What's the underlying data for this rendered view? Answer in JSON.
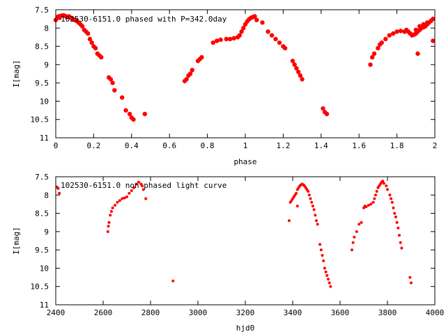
{
  "colors": {
    "points": "#ff0000",
    "frame": "#000000",
    "background": "#ffffff"
  },
  "chart_data": [
    {
      "type": "scatter",
      "title": "102530-6151.0 phased with P=342.0day",
      "xlabel": "phase",
      "ylabel": "I[mag]",
      "xlim": [
        0,
        2
      ],
      "ylim": [
        11,
        7.5
      ],
      "y_inverted": true,
      "grid": false,
      "xticks": [
        "0",
        "0.2",
        "0.4",
        "0.6",
        "0.8",
        "1",
        "1.2",
        "1.4",
        "1.6",
        "1.8",
        "2"
      ],
      "yticks": [
        "7.5",
        "8",
        "8.5",
        "9",
        "9.5",
        "10",
        "10.5",
        "11"
      ],
      "marker": "large-dot",
      "series": [
        {
          "values": [
            [
              0.0,
              7.78
            ],
            [
              0.01,
              7.7
            ],
            [
              0.015,
              7.68
            ],
            [
              0.02,
              7.72
            ],
            [
              0.03,
              7.66
            ],
            [
              0.04,
              7.65
            ],
            [
              0.05,
              7.67
            ],
            [
              0.06,
              7.7
            ],
            [
              0.07,
              7.68
            ],
            [
              0.08,
              7.72
            ],
            [
              0.09,
              7.75
            ],
            [
              0.1,
              7.78
            ],
            [
              0.11,
              7.8
            ],
            [
              0.12,
              7.85
            ],
            [
              0.13,
              7.9
            ],
            [
              0.14,
              7.95
            ],
            [
              0.15,
              8.05
            ],
            [
              0.16,
              8.1
            ],
            [
              0.17,
              8.15
            ],
            [
              0.18,
              8.3
            ],
            [
              0.19,
              8.4
            ],
            [
              0.2,
              8.5
            ],
            [
              0.21,
              8.55
            ],
            [
              0.22,
              8.7
            ],
            [
              0.23,
              8.75
            ],
            [
              0.24,
              8.8
            ],
            [
              0.28,
              9.35
            ],
            [
              0.29,
              9.4
            ],
            [
              0.3,
              9.5
            ],
            [
              0.31,
              9.7
            ],
            [
              0.35,
              9.9
            ],
            [
              0.37,
              10.25
            ],
            [
              0.39,
              10.35
            ],
            [
              0.4,
              10.45
            ],
            [
              0.41,
              10.5
            ],
            [
              0.47,
              10.35
            ],
            [
              0.68,
              9.45
            ],
            [
              0.69,
              9.4
            ],
            [
              0.7,
              9.3
            ],
            [
              0.71,
              9.25
            ],
            [
              0.72,
              9.15
            ],
            [
              0.75,
              8.9
            ],
            [
              0.76,
              8.85
            ],
            [
              0.77,
              8.8
            ],
            [
              0.83,
              8.4
            ],
            [
              0.85,
              8.35
            ],
            [
              0.87,
              8.32
            ],
            [
              0.9,
              8.3
            ],
            [
              0.92,
              8.3
            ],
            [
              0.94,
              8.28
            ],
            [
              0.96,
              8.25
            ],
            [
              0.97,
              8.2
            ],
            [
              0.98,
              8.1
            ],
            [
              0.99,
              8.0
            ],
            [
              1.0,
              7.9
            ],
            [
              1.01,
              7.82
            ],
            [
              1.02,
              7.76
            ],
            [
              1.03,
              7.72
            ],
            [
              1.04,
              7.7
            ],
            [
              1.05,
              7.68
            ],
            [
              1.06,
              7.78
            ],
            [
              1.09,
              7.85
            ],
            [
              1.12,
              8.1
            ],
            [
              1.14,
              8.2
            ],
            [
              1.16,
              8.3
            ],
            [
              1.18,
              8.4
            ],
            [
              1.2,
              8.5
            ],
            [
              1.21,
              8.55
            ],
            [
              1.25,
              8.9
            ],
            [
              1.26,
              9.0
            ],
            [
              1.27,
              9.1
            ],
            [
              1.28,
              9.2
            ],
            [
              1.29,
              9.3
            ],
            [
              1.3,
              9.4
            ],
            [
              1.41,
              10.2
            ],
            [
              1.42,
              10.3
            ],
            [
              1.43,
              10.35
            ],
            [
              1.66,
              9.0
            ],
            [
              1.67,
              8.8
            ],
            [
              1.68,
              8.7
            ],
            [
              1.7,
              8.55
            ],
            [
              1.71,
              8.45
            ],
            [
              1.72,
              8.4
            ],
            [
              1.74,
              8.3
            ],
            [
              1.76,
              8.2
            ],
            [
              1.78,
              8.15
            ],
            [
              1.8,
              8.1
            ],
            [
              1.82,
              8.08
            ],
            [
              1.84,
              8.1
            ],
            [
              1.85,
              8.05
            ],
            [
              1.86,
              8.1
            ],
            [
              1.87,
              8.15
            ],
            [
              1.88,
              8.2
            ],
            [
              1.89,
              8.18
            ],
            [
              1.9,
              8.15
            ],
            [
              1.91,
              8.1
            ],
            [
              1.92,
              8.05
            ],
            [
              1.93,
              8.0
            ],
            [
              1.94,
              7.98
            ],
            [
              1.95,
              7.95
            ],
            [
              1.96,
              7.9
            ],
            [
              1.97,
              7.85
            ],
            [
              1.98,
              7.8
            ],
            [
              1.99,
              7.75
            ],
            [
              1.9,
              8.05
            ],
            [
              1.92,
              7.95
            ],
            [
              1.94,
              7.9
            ],
            [
              1.96,
              7.85
            ],
            [
              1.98,
              7.8
            ],
            [
              1.91,
              8.7
            ],
            [
              1.99,
              8.35
            ]
          ]
        }
      ]
    },
    {
      "type": "scatter",
      "title": "102530-6151.0 non phased light curve",
      "xlabel": "hjd0",
      "ylabel": "I[mag]",
      "xlim": [
        2400,
        4000
      ],
      "ylim": [
        11,
        7.5
      ],
      "y_inverted": true,
      "grid": false,
      "xticks": [
        "2400",
        "2600",
        "2800",
        "3000",
        "3200",
        "3400",
        "3600",
        "3800",
        "4000"
      ],
      "yticks": [
        "7.5",
        "8",
        "8.5",
        "9",
        "9.5",
        "10",
        "10.5",
        "11"
      ],
      "marker": "small-dot",
      "series": [
        {
          "values": [
            [
              2405,
              7.78
            ],
            [
              2410,
              7.82
            ],
            [
              2415,
              7.95
            ],
            [
              2620,
              9.0
            ],
            [
              2622,
              8.85
            ],
            [
              2625,
              8.75
            ],
            [
              2630,
              8.55
            ],
            [
              2635,
              8.45
            ],
            [
              2640,
              8.35
            ],
            [
              2650,
              8.28
            ],
            [
              2660,
              8.2
            ],
            [
              2670,
              8.15
            ],
            [
              2680,
              8.1
            ],
            [
              2690,
              8.08
            ],
            [
              2700,
              8.05
            ],
            [
              2710,
              7.95
            ],
            [
              2720,
              7.88
            ],
            [
              2730,
              7.8
            ],
            [
              2740,
              7.7
            ],
            [
              2750,
              7.65
            ],
            [
              2760,
              7.7
            ],
            [
              2765,
              7.75
            ],
            [
              2770,
              7.85
            ],
            [
              2780,
              8.1
            ],
            [
              2895,
              10.35
            ],
            [
              3385,
              8.7
            ],
            [
              3390,
              8.2
            ],
            [
              3395,
              8.15
            ],
            [
              3400,
              8.1
            ],
            [
              3405,
              8.05
            ],
            [
              3410,
              8.0
            ],
            [
              3415,
              7.95
            ],
            [
              3420,
              7.85
            ],
            [
              3425,
              7.8
            ],
            [
              3430,
              7.75
            ],
            [
              3435,
              7.72
            ],
            [
              3440,
              7.7
            ],
            [
              3445,
              7.72
            ],
            [
              3450,
              7.75
            ],
            [
              3455,
              7.8
            ],
            [
              3460,
              7.85
            ],
            [
              3465,
              7.9
            ],
            [
              3470,
              8.0
            ],
            [
              3475,
              8.1
            ],
            [
              3480,
              8.2
            ],
            [
              3485,
              8.3
            ],
            [
              3490,
              8.4
            ],
            [
              3495,
              8.55
            ],
            [
              3500,
              8.7
            ],
            [
              3505,
              8.8
            ],
            [
              3420,
              8.3
            ],
            [
              3515,
              9.35
            ],
            [
              3520,
              9.5
            ],
            [
              3525,
              9.65
            ],
            [
              3530,
              9.8
            ],
            [
              3535,
              10.0
            ],
            [
              3540,
              10.1
            ],
            [
              3545,
              10.2
            ],
            [
              3550,
              10.3
            ],
            [
              3555,
              10.4
            ],
            [
              3560,
              10.5
            ],
            [
              3650,
              9.5
            ],
            [
              3655,
              9.3
            ],
            [
              3660,
              9.15
            ],
            [
              3670,
              9.0
            ],
            [
              3680,
              8.8
            ],
            [
              3690,
              8.75
            ],
            [
              3700,
              8.35
            ],
            [
              3705,
              8.3
            ],
            [
              3710,
              8.32
            ],
            [
              3720,
              8.28
            ],
            [
              3730,
              8.25
            ],
            [
              3740,
              8.2
            ],
            [
              3745,
              8.1
            ],
            [
              3750,
              8.0
            ],
            [
              3755,
              7.9
            ],
            [
              3760,
              7.8
            ],
            [
              3765,
              7.75
            ],
            [
              3770,
              7.7
            ],
            [
              3775,
              7.65
            ],
            [
              3780,
              7.62
            ],
            [
              3785,
              7.68
            ],
            [
              3795,
              7.75
            ],
            [
              3800,
              7.85
            ],
            [
              3810,
              8.0
            ],
            [
              3815,
              8.1
            ],
            [
              3820,
              8.2
            ],
            [
              3825,
              8.35
            ],
            [
              3830,
              8.5
            ],
            [
              3835,
              8.6
            ],
            [
              3840,
              8.75
            ],
            [
              3845,
              8.9
            ],
            [
              3850,
              9.1
            ],
            [
              3855,
              9.3
            ],
            [
              3860,
              9.45
            ],
            [
              3895,
              10.25
            ],
            [
              3900,
              10.4
            ]
          ]
        }
      ]
    }
  ]
}
